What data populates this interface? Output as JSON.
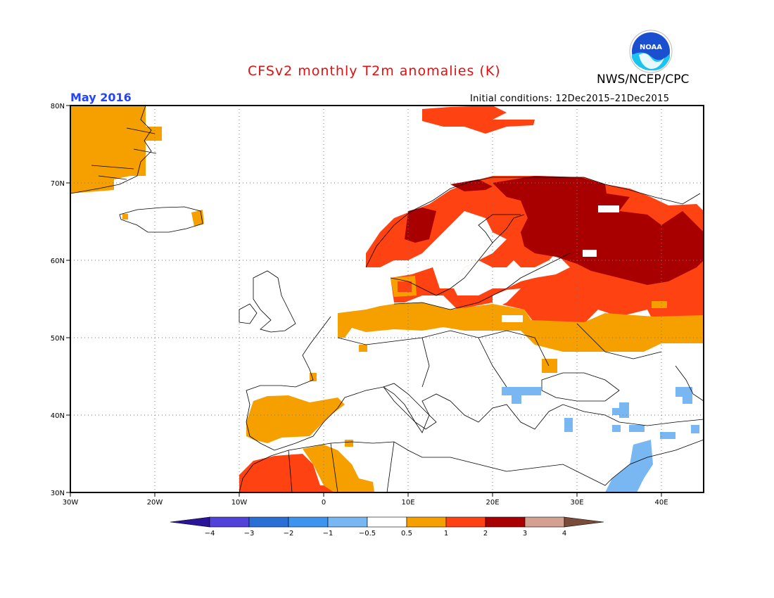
{
  "title": "CFSv2 monthly T2m anomalies (K)",
  "agency": "NWS/NCEP/CPC",
  "logo_text": "NOAA",
  "month": "May 2016",
  "initial_conditions": "Initial conditions: 12Dec2015–21Dec2015",
  "colors": {
    "title": "#e01010",
    "month": "#2244ff"
  },
  "lat_labels": [
    "80N",
    "70N",
    "60N",
    "50N",
    "40N",
    "30N"
  ],
  "lon_labels": [
    "30W",
    "20W",
    "10W",
    "0",
    "10E",
    "20E",
    "30E",
    "40E"
  ],
  "colorbar": {
    "labels": [
      "−4",
      "−3",
      "−2",
      "−1",
      "−0.5",
      "0.5",
      "1",
      "2",
      "3",
      "4"
    ],
    "colors": [
      "#2a1497",
      "#5243d8",
      "#2a6fd6",
      "#3d94ef",
      "#78b7f2",
      "#ffffff",
      "#f6a000",
      "#ff4212",
      "#a80000",
      "#d3a092",
      "#7a4a3a"
    ]
  },
  "anomaly_regions": [
    {
      "name": "greenland-east",
      "level": "0.5-1"
    },
    {
      "name": "iceland-east",
      "level": "0.5-1"
    },
    {
      "name": "scandinavia",
      "level": "1-2"
    },
    {
      "name": "northwest-russia",
      "level": "2-3"
    },
    {
      "name": "central-europe-belt",
      "level": "0.5-1"
    },
    {
      "name": "iberia",
      "level": "0.5-1"
    },
    {
      "name": "north-africa",
      "level": "1-2"
    },
    {
      "name": "turkey-levant",
      "level": "-1 to -0.5"
    }
  ]
}
